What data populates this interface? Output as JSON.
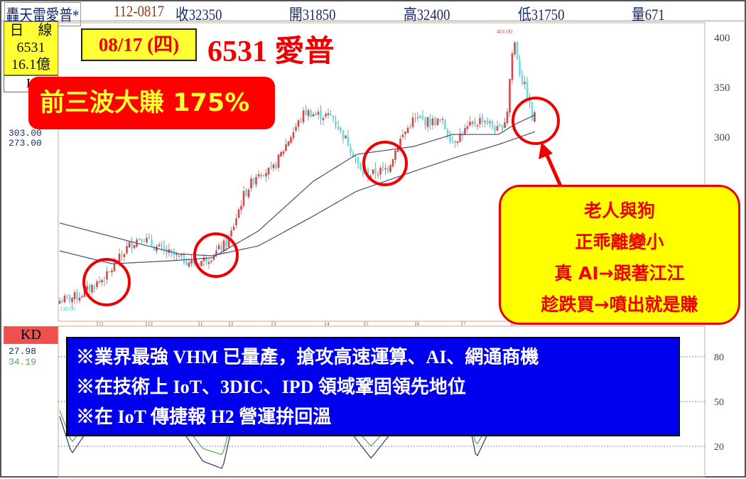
{
  "header": {
    "name": "轟天雷愛普*",
    "date_code": "112-0817",
    "close": "收32350",
    "open": "開31850",
    "high": "高32400",
    "low": "低31750",
    "volume": "量671"
  },
  "left_panel": {
    "period": "日　線",
    "code": "6531",
    "amount": "16.1億",
    "indicator": "K",
    "ma_values": [
      "303.00",
      "273.00"
    ]
  },
  "annotation": {
    "date": "08/17 (四)",
    "stock": "6531 愛普",
    "banner": "前三波大賺 175%",
    "callout": [
      "老人與狗",
      "正乖離變小",
      "真 AI→跟著江江",
      "趁跌買→噴出就是賺"
    ],
    "notes": [
      "※業界最強 VHM 已量產，搶攻高速運算、AI、網通商機",
      "※在技術上 IoT、3DIC、IPD 領域鞏固領先地位",
      "※在 IoT 傳捷報  H2 營運拚回溫"
    ],
    "highlight_color": "#ee0000"
  },
  "chart_data": [
    {
      "type": "candlestick",
      "ylim": [
        120,
        420
      ],
      "yticks": [
        "400",
        "350",
        "300"
      ],
      "xticks": [
        "11",
        "12",
        "1",
        "2",
        "3",
        "4",
        "5",
        "6",
        "7",
        "8"
      ],
      "max_label": "401.00",
      "min_label": "130.00",
      "close_waypoints": [
        [
          "2022-10-07",
          135
        ],
        [
          "2022-10-20",
          140
        ],
        [
          "2022-11-07",
          160
        ],
        [
          "2022-11-20",
          190
        ],
        [
          "2022-11-28",
          200
        ],
        [
          "2022-12-05",
          190
        ],
        [
          "2022-12-20",
          178
        ],
        [
          "2022-12-30",
          172
        ],
        [
          "2023-01-14",
          180
        ],
        [
          "2023-01-31",
          195
        ],
        [
          "2023-02-10",
          240
        ],
        [
          "2023-02-20",
          265
        ],
        [
          "2023-03-01",
          265
        ],
        [
          "2023-03-10",
          295
        ],
        [
          "2023-03-20",
          325
        ],
        [
          "2023-03-27",
          322
        ],
        [
          "2023-04-06",
          320
        ],
        [
          "2023-04-20",
          290
        ],
        [
          "2023-04-28",
          265
        ],
        [
          "2023-05-05",
          262
        ],
        [
          "2023-05-15",
          268
        ],
        [
          "2023-05-22",
          295
        ],
        [
          "2023-05-31",
          318
        ],
        [
          "2023-06-09",
          315
        ],
        [
          "2023-06-18",
          315
        ],
        [
          "2023-06-25",
          295
        ],
        [
          "2023-07-06",
          310
        ],
        [
          "2023-07-14",
          318
        ],
        [
          "2023-07-24",
          305
        ],
        [
          "2023-07-29",
          320
        ],
        [
          "2023-08-01",
          380
        ],
        [
          "2023-08-03",
          395
        ],
        [
          "2023-08-07",
          360
        ],
        [
          "2023-08-11",
          345
        ],
        [
          "2023-08-15",
          315
        ],
        [
          "2023-08-17",
          323.5
        ]
      ],
      "ma_short": [
        [
          "2022-10-07",
          185
        ],
        [
          "2022-11-10",
          172
        ],
        [
          "2022-12-15",
          175
        ],
        [
          "2023-01-14",
          178
        ],
        [
          "2023-02-20",
          205
        ],
        [
          "2023-03-25",
          255
        ],
        [
          "2023-04-25",
          282
        ],
        [
          "2023-05-31",
          290
        ],
        [
          "2023-06-25",
          302
        ],
        [
          "2023-07-24",
          302
        ],
        [
          "2023-08-03",
          312
        ],
        [
          "2023-08-17",
          322
        ]
      ],
      "ma_long": [
        [
          "2022-10-07",
          213
        ],
        [
          "2022-11-20",
          195
        ],
        [
          "2022-12-20",
          182
        ],
        [
          "2023-01-14",
          180
        ],
        [
          "2023-02-20",
          190
        ],
        [
          "2023-03-25",
          220
        ],
        [
          "2023-04-25",
          245
        ],
        [
          "2023-05-31",
          265
        ],
        [
          "2023-06-25",
          278
        ],
        [
          "2023-07-24",
          292
        ],
        [
          "2023-08-17",
          305
        ]
      ]
    },
    {
      "type": "line",
      "title": "KD",
      "ylim": [
        0,
        100
      ],
      "yticks": [
        "80",
        "50",
        "20"
      ],
      "series": [
        {
          "name": "K",
          "last": "27.98",
          "color": "#33336a"
        },
        {
          "name": "D",
          "last": "34.19",
          "color": "#55aa55"
        }
      ],
      "k_waypoints": [
        [
          "2022-10-07",
          40
        ],
        [
          "2022-10-15",
          15
        ],
        [
          "2022-10-25",
          30
        ],
        [
          "2022-11-05",
          85
        ],
        [
          "2022-12-05",
          60
        ],
        [
          "2023-01-05",
          10
        ],
        [
          "2023-01-25",
          5
        ],
        [
          "2023-02-15",
          90
        ],
        [
          "2023-03-25",
          85
        ],
        [
          "2023-04-20",
          30
        ],
        [
          "2023-05-05",
          12
        ],
        [
          "2023-05-25",
          40
        ],
        [
          "2023-06-18",
          80
        ],
        [
          "2023-07-05",
          40
        ],
        [
          "2023-07-10",
          12
        ],
        [
          "2023-07-20",
          35
        ],
        [
          "2023-08-03",
          90
        ],
        [
          "2023-08-17",
          28
        ]
      ]
    }
  ]
}
